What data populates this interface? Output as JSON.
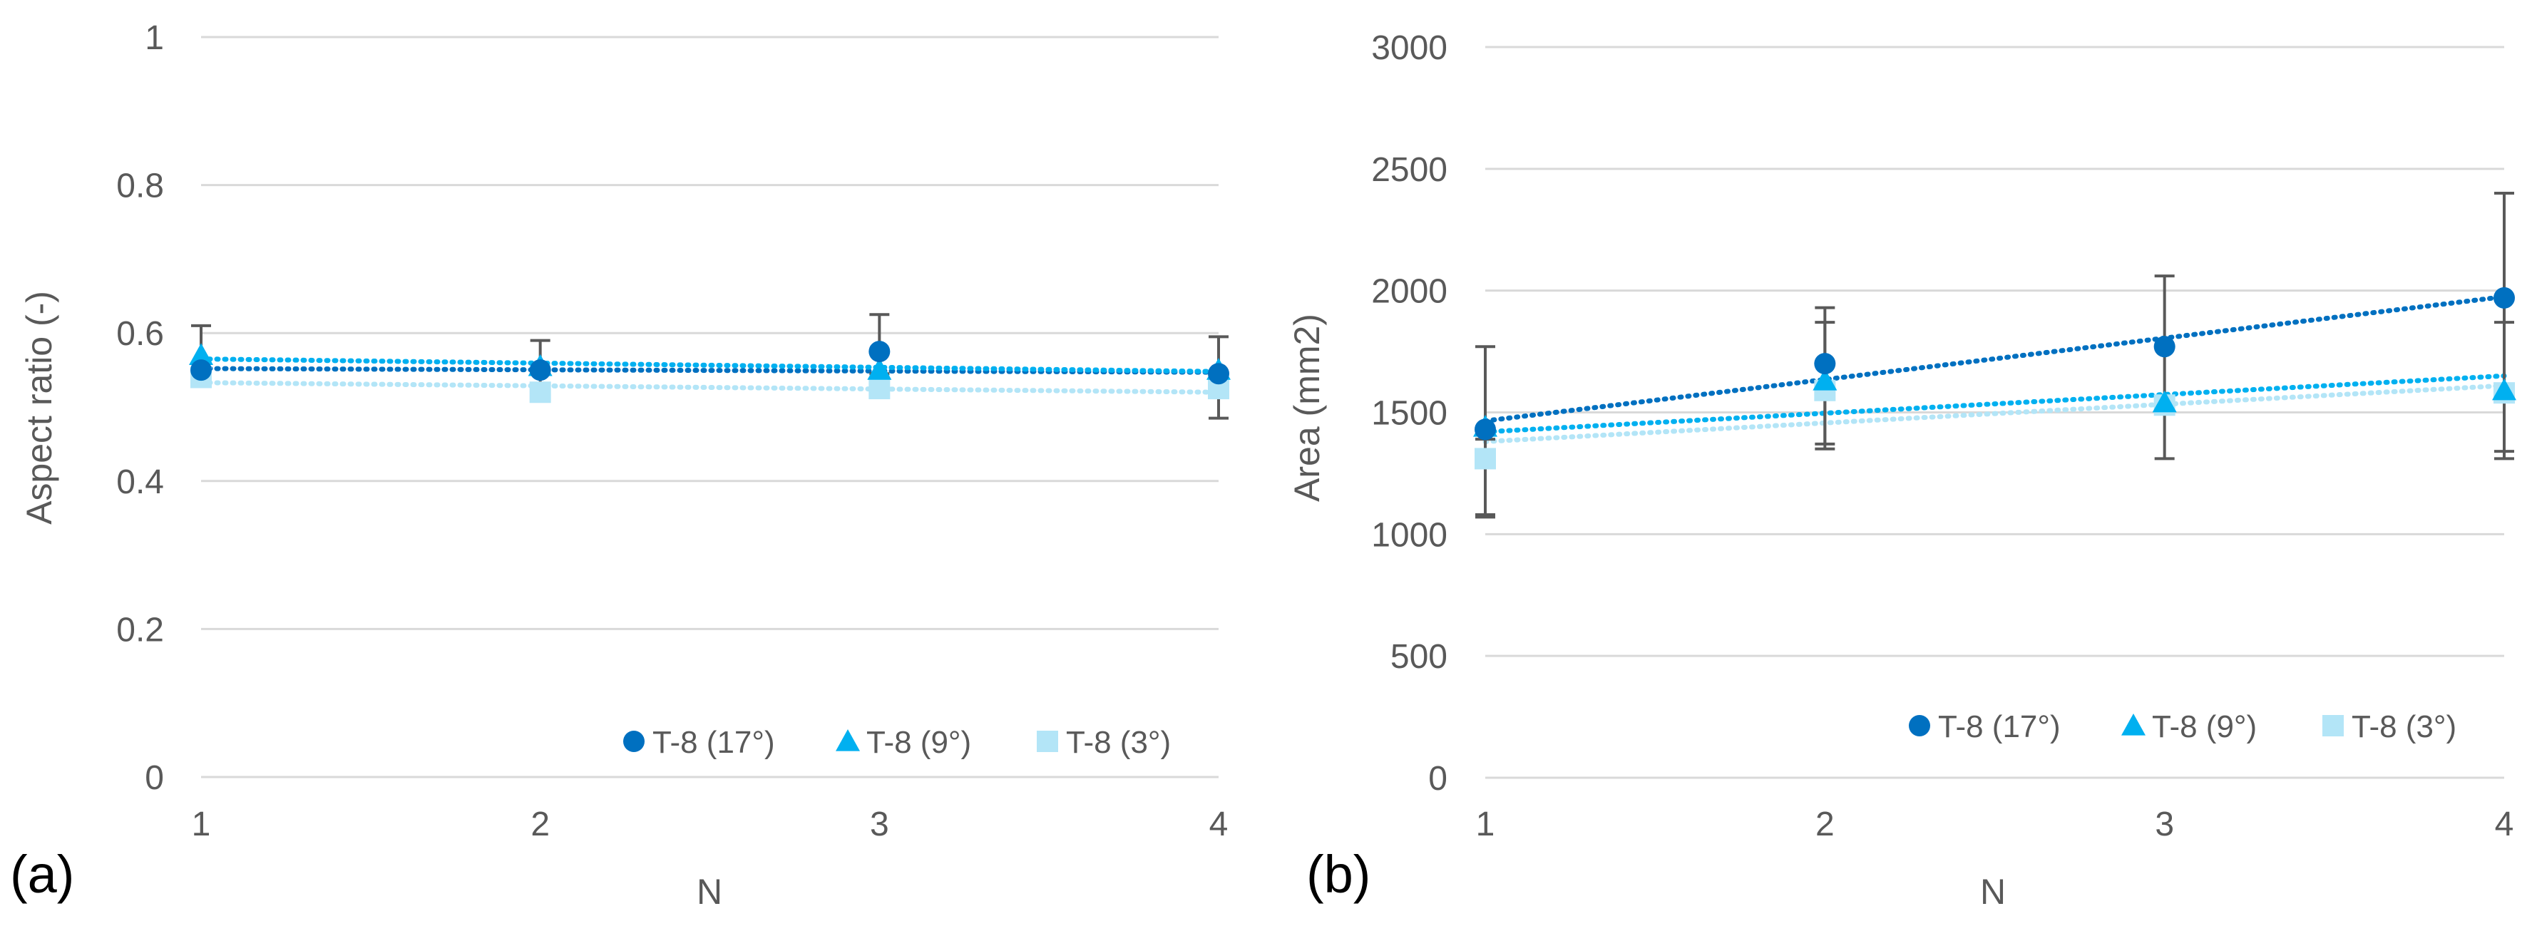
{
  "colors": {
    "series_17": "#0070c0",
    "series_9": "#00b0f0",
    "series_3": "#b3e5f7",
    "gridline": "#d9d9d9",
    "error_bar": "#595959",
    "text": "#595959"
  },
  "chart_data": [
    {
      "panel_label": "(a)",
      "type": "scatter",
      "title": "",
      "xlabel": "N",
      "ylabel": "Aspect ratio (-)",
      "xlim": [
        1,
        4
      ],
      "ylim": [
        0,
        1
      ],
      "x_ticks": [
        "1",
        "2",
        "3",
        "4"
      ],
      "y_ticks": [
        "0",
        "0.2",
        "0.4",
        "0.6",
        "0.8",
        "1"
      ],
      "grid": true,
      "legend_position": "bottom-right",
      "series": [
        {
          "name": "T-8 (17°)",
          "marker": "circle",
          "color": "#0070c0",
          "x": [
            1,
            2,
            3,
            4
          ],
          "values": [
            0.55,
            0.55,
            0.575,
            0.545
          ],
          "err_low": [
            0.0,
            0.03,
            0.03,
            0.0
          ],
          "err_high": [
            0.0,
            0.04,
            0.05,
            0.0
          ],
          "trend": [
            0.552,
            0.547
          ]
        },
        {
          "name": "T-8 (9°)",
          "marker": "triangle",
          "color": "#00b0f0",
          "x": [
            1,
            2,
            3,
            4
          ],
          "values": [
            0.57,
            0.555,
            0.55,
            0.55
          ],
          "err_low": [
            0.04,
            0.0,
            0.0,
            0.0
          ],
          "err_high": [
            0.04,
            0.0,
            0.0,
            0.0
          ],
          "trend": [
            0.565,
            0.548
          ]
        },
        {
          "name": "T-8 (3°)",
          "marker": "square",
          "color": "#b3e5f7",
          "x": [
            1,
            2,
            3,
            4
          ],
          "values": [
            0.54,
            0.52,
            0.525,
            0.525
          ],
          "err_low": [
            0.0,
            0.0,
            0.0,
            0.04
          ],
          "err_high": [
            0.0,
            0.0,
            0.0,
            0.07
          ],
          "trend": [
            0.533,
            0.52
          ]
        }
      ]
    },
    {
      "panel_label": "(b)",
      "type": "scatter",
      "title": "",
      "xlabel": "N",
      "ylabel": "Area (mm2)",
      "xlim": [
        1,
        4
      ],
      "ylim": [
        0,
        3000
      ],
      "x_ticks": [
        "1",
        "2",
        "3",
        "4"
      ],
      "y_ticks": [
        "0",
        "500",
        "1000",
        "1500",
        "2000",
        "2500",
        "3000"
      ],
      "grid": true,
      "legend_position": "bottom-right",
      "series": [
        {
          "name": "T-8 (17°)",
          "marker": "circle",
          "color": "#0070c0",
          "x": [
            1,
            2,
            3,
            4
          ],
          "values": [
            1430,
            1700,
            1770,
            1970
          ],
          "err_low": [
            350,
            350,
            460,
            630
          ],
          "err_high": [
            340,
            230,
            290,
            430
          ],
          "trend": [
            1465,
            1975
          ]
        },
        {
          "name": "T-8 (9°)",
          "marker": "triangle",
          "color": "#00b0f0",
          "x": [
            1,
            2,
            3,
            4
          ],
          "values": [
            1440,
            1630,
            1540,
            1590
          ],
          "err_low": [
            0,
            0,
            0,
            0
          ],
          "err_high": [
            0,
            0,
            0,
            0
          ],
          "trend": [
            1420,
            1650
          ]
        },
        {
          "name": "T-8 (3°)",
          "marker": "square",
          "color": "#b3e5f7",
          "x": [
            1,
            2,
            3,
            4
          ],
          "values": [
            1310,
            1590,
            1530,
            1580
          ],
          "err_low": [
            240,
            220,
            0,
            270
          ],
          "err_high": [
            80,
            280,
            0,
            290
          ],
          "trend": [
            1380,
            1610
          ]
        }
      ]
    }
  ]
}
